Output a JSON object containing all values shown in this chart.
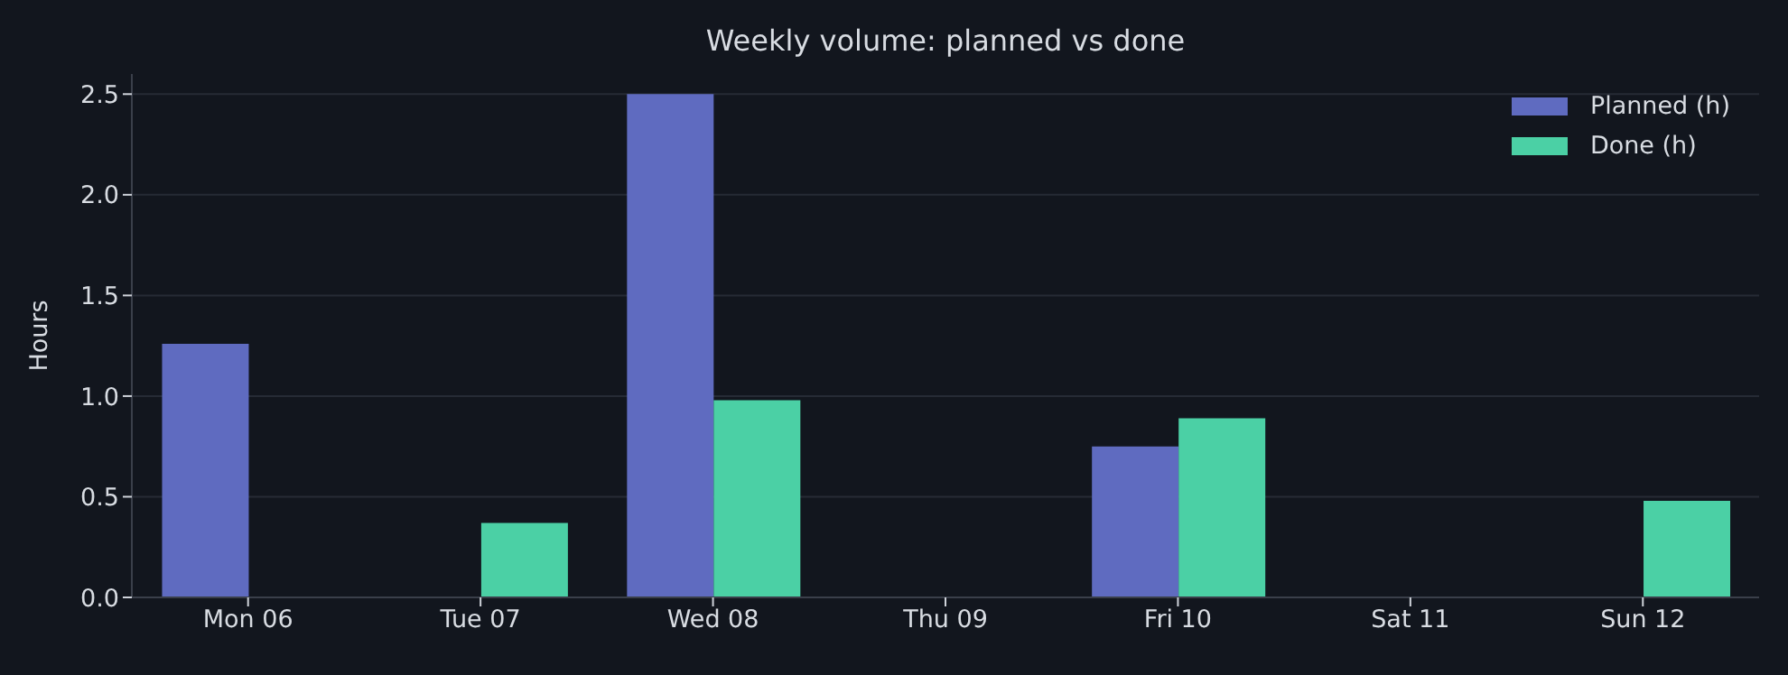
{
  "chart_data": {
    "type": "bar",
    "title": "Weekly volume: planned vs done",
    "ylabel": "Hours",
    "categories": [
      "Mon 06",
      "Tue 07",
      "Wed 08",
      "Thu 09",
      "Fri 10",
      "Sat 11",
      "Sun 12"
    ],
    "series": [
      {
        "name": "Planned (h)",
        "color": "#5f6bc0",
        "values": [
          1.26,
          0,
          2.5,
          0,
          0.75,
          0,
          0
        ]
      },
      {
        "name": "Done (h)",
        "color": "#4bd0a5",
        "values": [
          0,
          0.37,
          0.98,
          0,
          0.89,
          0,
          0.48
        ]
      }
    ],
    "ylim": [
      0,
      2.6
    ],
    "yticks": [
      {
        "value": 0,
        "label": "0.0"
      },
      0.5,
      {
        "value": 1,
        "label": "1.0"
      },
      1.5,
      {
        "value": 2,
        "label": "2.0"
      },
      2.5
    ],
    "grid": "y",
    "legend": "top right"
  }
}
